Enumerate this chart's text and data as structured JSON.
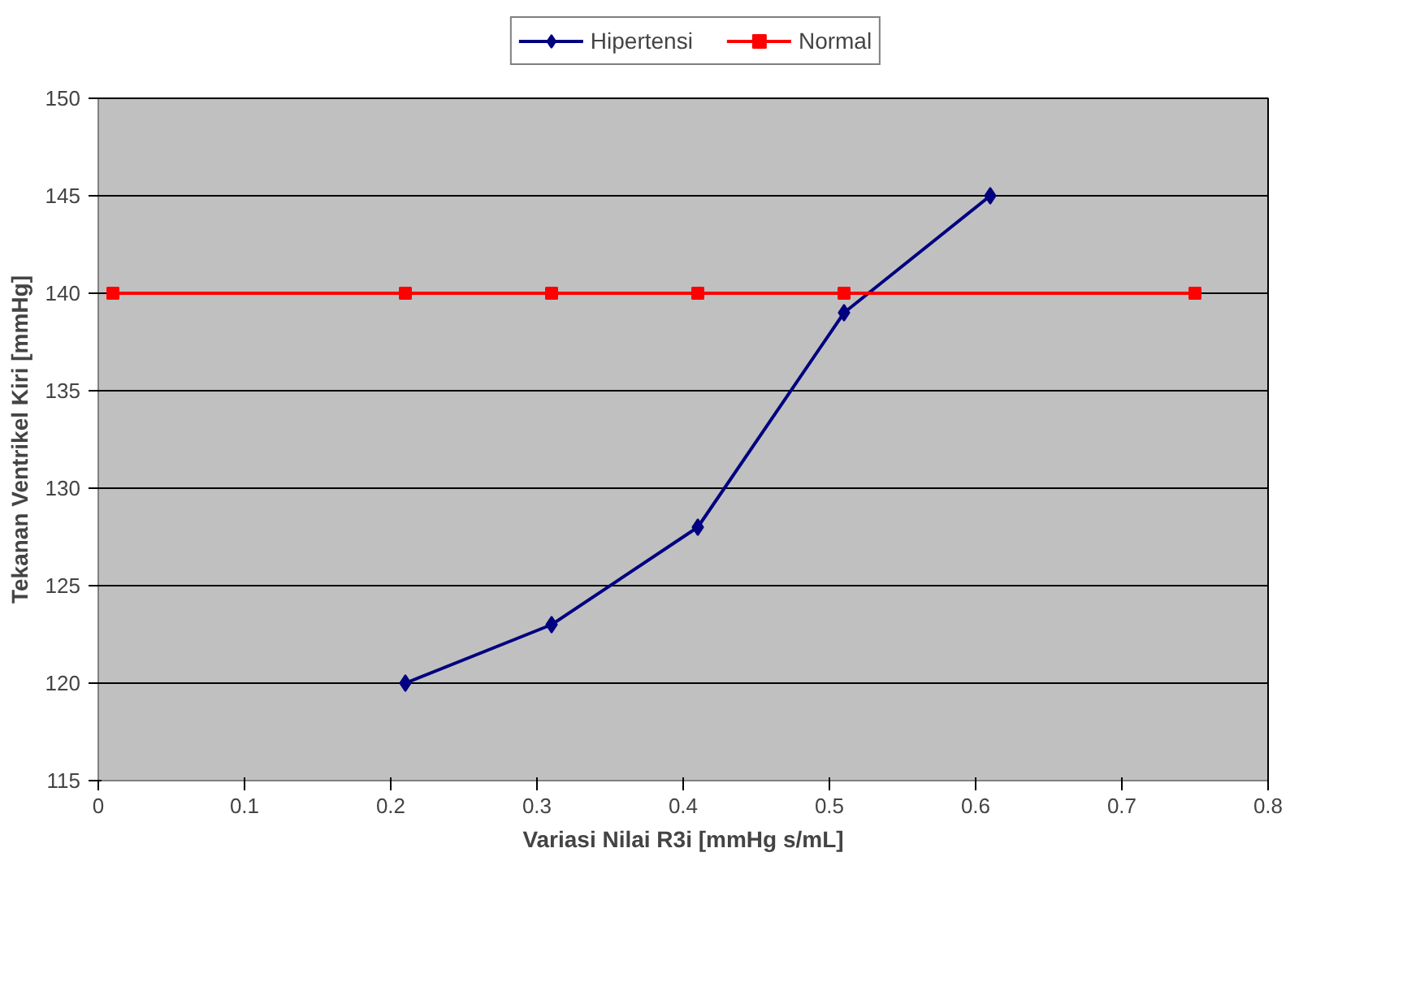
{
  "chart_data": {
    "type": "line",
    "xlabel": "Variasi Nilai R3i [mmHg s/mL]",
    "ylabel": "Tekanan Ventrikel Kiri [mmHg]",
    "xlim": [
      0,
      0.8
    ],
    "xticks": [
      0,
      0.1,
      0.2,
      0.3,
      0.4,
      0.5,
      0.6,
      0.7,
      0.8
    ],
    "ylim": [
      115,
      150
    ],
    "yticks": [
      115,
      120,
      125,
      130,
      135,
      140,
      145,
      150
    ],
    "grid": "y",
    "legend": "top",
    "series": [
      {
        "name": "Hipertensi",
        "color": "#000080",
        "marker": "diamond",
        "x": [
          0.21,
          0.31,
          0.41,
          0.51,
          0.61
        ],
        "values": [
          120,
          123,
          128,
          139,
          145
        ]
      },
      {
        "name": "Normal",
        "color": "#ff0000",
        "marker": "square",
        "x": [
          0.01,
          0.21,
          0.31,
          0.41,
          0.51,
          0.75
        ],
        "values": [
          140,
          140,
          140,
          140,
          140,
          140
        ]
      }
    ]
  }
}
